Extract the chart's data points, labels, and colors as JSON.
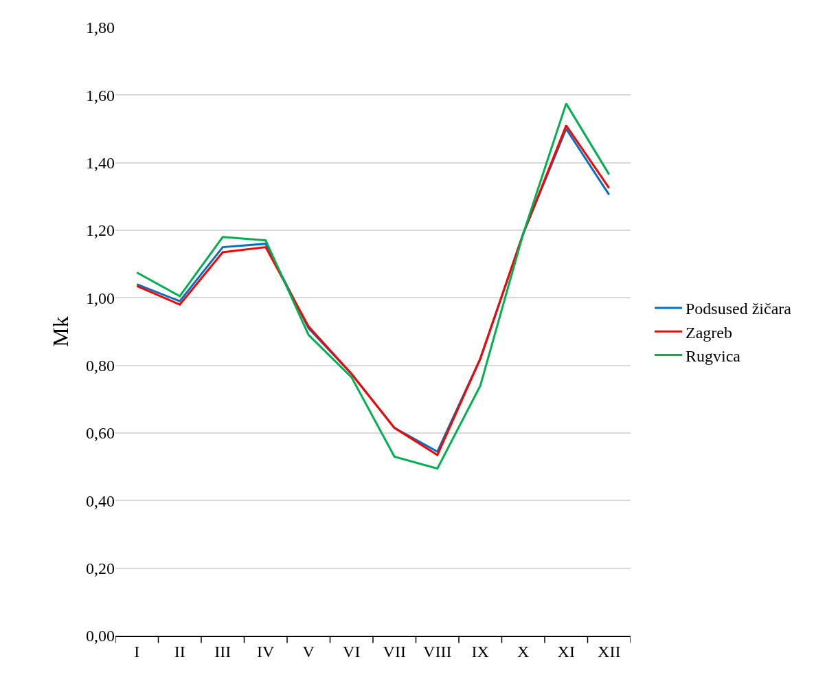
{
  "chart_data": {
    "type": "line",
    "ylabel": "Mk",
    "categories": [
      "I",
      "II",
      "III",
      "IV",
      "V",
      "VI",
      "VII",
      "VIII",
      "IX",
      "X",
      "XI",
      "XII"
    ],
    "series": [
      {
        "name": "Podsused žičara",
        "color": "#0070c0",
        "values": [
          1.04,
          0.99,
          1.15,
          1.16,
          0.91,
          0.775,
          0.615,
          0.545,
          0.82,
          1.19,
          1.5,
          1.305
        ]
      },
      {
        "name": "Zagreb",
        "color": "#ff0000",
        "values": [
          1.035,
          0.98,
          1.135,
          1.15,
          0.915,
          0.775,
          0.615,
          0.535,
          0.82,
          1.19,
          1.51,
          1.325
        ]
      },
      {
        "name": "Rugvica",
        "color": "#00b050",
        "values": [
          1.075,
          1.005,
          1.18,
          1.17,
          0.89,
          0.765,
          0.53,
          0.495,
          0.74,
          1.19,
          1.575,
          1.365
        ]
      }
    ],
    "ylim": [
      0,
      1.8
    ],
    "yticks": [
      {
        "value": 0,
        "label": "0,00"
      },
      {
        "value": 0.2,
        "label": "0,20"
      },
      {
        "value": 0.4,
        "label": "0,40"
      },
      {
        "value": 0.6,
        "label": "0,60"
      },
      {
        "value": 0.8,
        "label": "0,80"
      },
      {
        "value": 1.0,
        "label": "1,00"
      },
      {
        "value": 1.2,
        "label": "1,20"
      },
      {
        "value": 1.4,
        "label": "1,40"
      },
      {
        "value": 1.6,
        "label": "1,60"
      },
      {
        "value": 1.8,
        "label": "1,80"
      }
    ],
    "grid": "y",
    "legend": "right",
    "marker": "none",
    "line_style": "solid"
  }
}
